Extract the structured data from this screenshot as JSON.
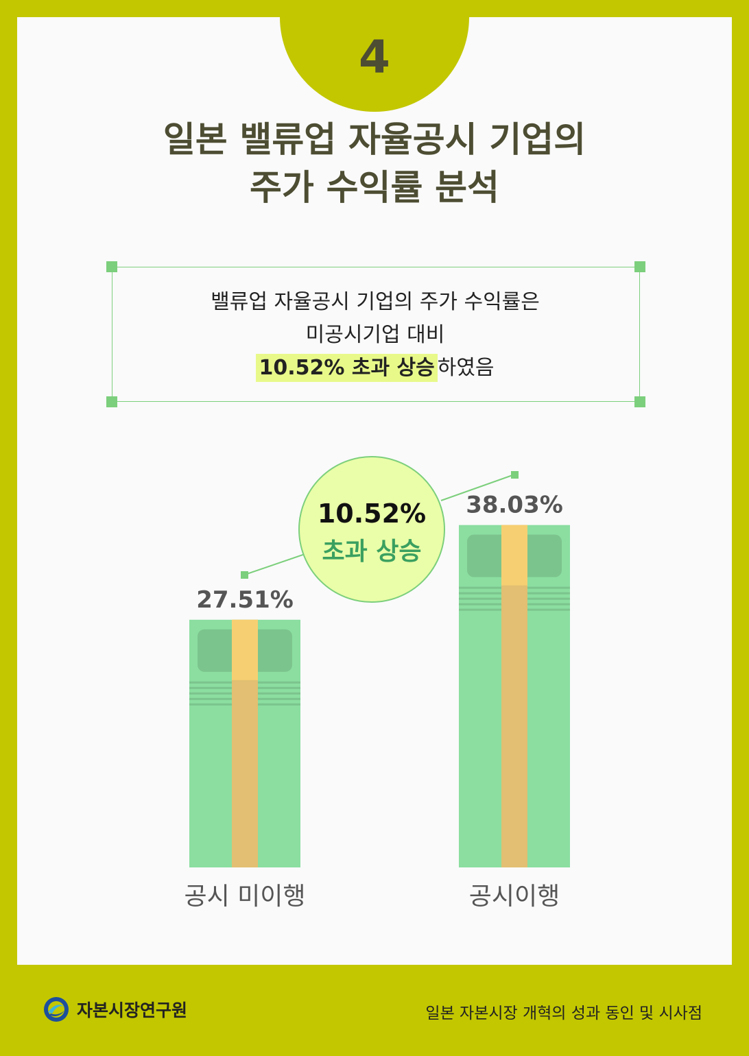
{
  "page_number": "4",
  "title": {
    "line1": "일본 밸류업 자율공시 기업의",
    "line2": "주가 수익률 분석"
  },
  "callout": {
    "line1": "밸류업 자율공시 기업의 주가 수익률은",
    "line2": "미공시기업 대비",
    "line3_highlight": "10.52% 초과 상승",
    "line3_rest": "하였음"
  },
  "bubble": {
    "value": "10.52%",
    "label": "초과 상승"
  },
  "chart_data": {
    "type": "bar",
    "categories": [
      "공시 미이행",
      "공시이행"
    ],
    "values": [
      27.51,
      38.03
    ],
    "value_labels": [
      "27.51%",
      "38.03%"
    ],
    "title": "",
    "xlabel": "",
    "ylabel": "",
    "ylim": [
      0,
      45
    ],
    "grid": false
  },
  "colors": {
    "frame": "#c2c700",
    "bill_green": "#8bdea0",
    "bill_dark": "#7cc48d",
    "band": "#e2bf72",
    "band_top": "#f6cf72",
    "bubble_fill": "#eafda8",
    "bubble_text": "#3aa060",
    "title_text": "#4d4d33"
  },
  "footer": {
    "org": "자본시장연구원",
    "series": "일본 자본시장 개혁의 성과 동인 및 시사점"
  }
}
